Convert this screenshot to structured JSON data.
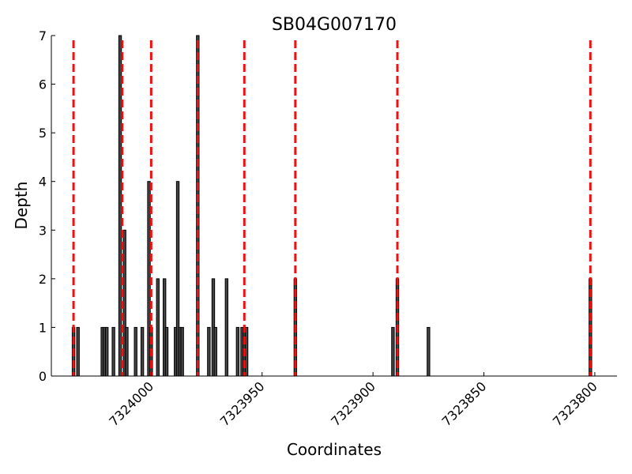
{
  "chart_data": {
    "type": "bar",
    "title": "SB04G007170",
    "xlabel": "Coordinates",
    "ylabel": "Depth",
    "xlim": [
      7324045,
      7323790
    ],
    "ylim": [
      0,
      7
    ],
    "x_inverted": true,
    "x_ticks": [
      7324000,
      7323950,
      7323900,
      7323850,
      7323800
    ],
    "x_tick_labels": [
      "7324000",
      "7323950",
      "7323900",
      "7323850",
      "7323800"
    ],
    "y_ticks": [
      0,
      1,
      2,
      3,
      4,
      5,
      6,
      7
    ],
    "y_tick_labels": [
      "0",
      "1",
      "2",
      "3",
      "4",
      "5",
      "6",
      "7"
    ],
    "grid": false,
    "bars": [
      {
        "x": 7324035,
        "value": 1
      },
      {
        "x": 7324033,
        "value": 1
      },
      {
        "x": 7324022,
        "value": 1
      },
      {
        "x": 7324021,
        "value": 1
      },
      {
        "x": 7324020,
        "value": 1
      },
      {
        "x": 7324017,
        "value": 1
      },
      {
        "x": 7324014,
        "value": 7
      },
      {
        "x": 7324012,
        "value": 3
      },
      {
        "x": 7324011,
        "value": 1
      },
      {
        "x": 7324007,
        "value": 1
      },
      {
        "x": 7324004,
        "value": 1
      },
      {
        "x": 7324001,
        "value": 4
      },
      {
        "x": 7324000,
        "value": 1
      },
      {
        "x": 7323997,
        "value": 2
      },
      {
        "x": 7323994,
        "value": 2
      },
      {
        "x": 7323993,
        "value": 1
      },
      {
        "x": 7323989,
        "value": 1
      },
      {
        "x": 7323988,
        "value": 4
      },
      {
        "x": 7323987,
        "value": 1
      },
      {
        "x": 7323986,
        "value": 1
      },
      {
        "x": 7323979,
        "value": 7
      },
      {
        "x": 7323974,
        "value": 1
      },
      {
        "x": 7323972,
        "value": 2
      },
      {
        "x": 7323971,
        "value": 1
      },
      {
        "x": 7323966,
        "value": 2
      },
      {
        "x": 7323961,
        "value": 1
      },
      {
        "x": 7323959,
        "value": 1
      },
      {
        "x": 7323958,
        "value": 1
      },
      {
        "x": 7323957,
        "value": 1
      },
      {
        "x": 7323935,
        "value": 2
      },
      {
        "x": 7323891,
        "value": 1
      },
      {
        "x": 7323889,
        "value": 2
      },
      {
        "x": 7323875,
        "value": 1
      },
      {
        "x": 7323802,
        "value": 2
      }
    ],
    "reference_lines": {
      "x": [
        7324035,
        7324013,
        7324000,
        7323979,
        7323958,
        7323935,
        7323889,
        7323802
      ],
      "color": "#ee1111",
      "style": "dashed"
    },
    "bar_color": "#444444"
  }
}
